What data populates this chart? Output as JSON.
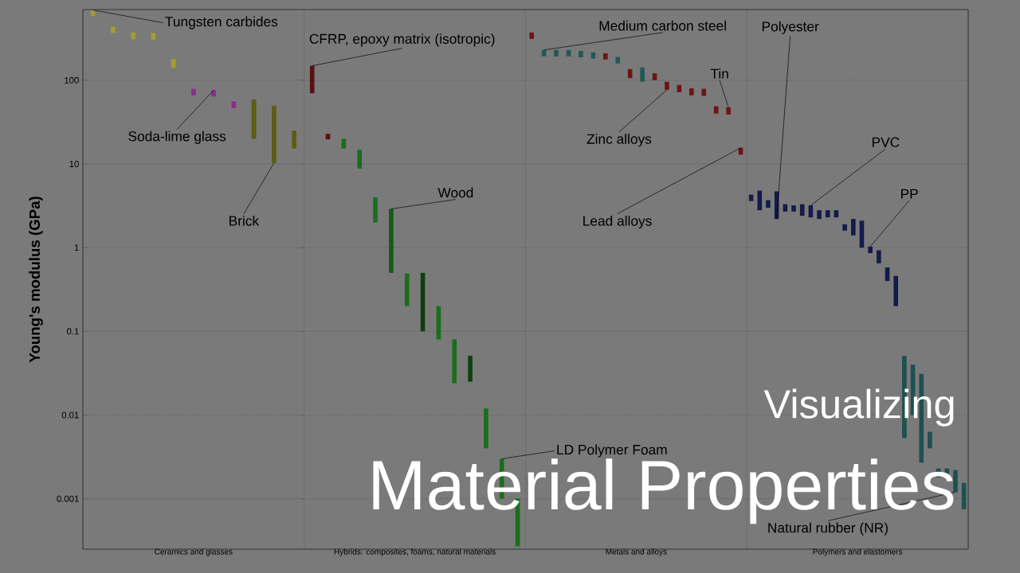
{
  "chart_data": [
    {
      "type": "bar",
      "ylabel": "Young's modulus (GPa)",
      "xlabel": "Ceramics and glasses",
      "log": "y",
      "grid": "y",
      "tick_labels": "y",
      "ylim": [
        0.00025,
        700
      ],
      "yticks": [
        0.001,
        0.01,
        0.1,
        1,
        10,
        100
      ],
      "categories": [
        null,
        null,
        null,
        null,
        null,
        null,
        null,
        null,
        null,
        null,
        null
      ],
      "base": [
        590,
        366,
        310,
        304,
        141,
        66,
        64,
        46.5,
        20,
        10.3,
        15.3
      ],
      "values": [
        100,
        70,
        62,
        63,
        38,
        13,
        12,
        9.2,
        39,
        39.3,
        9.7
      ],
      "colors": [
        "#a0a030",
        "#a0a030",
        "#a0a030",
        "#a0a030",
        "#a0a030",
        "#8e2a8e",
        "#8e2a8e",
        "#8e2a8e",
        "#5c5c14",
        "#5c5c14",
        "#5c5c14"
      ],
      "annotations": [
        "Tungsten carbides",
        "Soda-lime glass",
        "Brick"
      ]
    },
    {
      "type": "bar",
      "xlabel": "Hybrids: composites, foams, natural materials",
      "log": "y",
      "grid": "y",
      "tick_labels": false,
      "ylim": [
        0.00025,
        700
      ],
      "yticks": [
        0.001,
        0.01,
        0.1,
        1,
        10,
        100
      ],
      "categories": [
        null,
        null,
        null,
        null,
        null,
        null,
        null,
        null,
        null,
        null,
        null,
        null,
        null,
        null
      ],
      "base": [
        70,
        19.7,
        15.3,
        8.8,
        2,
        0.5,
        0.2,
        0.1,
        0.08,
        0.024,
        0.025,
        0.004,
        0.001,
        0.00027
      ],
      "values": [
        79,
        3.2,
        4.7,
        6,
        2,
        2.4,
        0.29,
        0.4,
        0.12,
        0.056,
        0.026,
        0.008,
        0.002,
        0.00073
      ],
      "colors": [
        "#5a1010",
        "#5a1010",
        "#1a6e1a",
        "#1a6e1a",
        "#1a6e1a",
        "#155a15",
        "#1a6e1a",
        "#0f3f0f",
        "#1a6e1a",
        "#1a6e1a",
        "#0f3f0f",
        "#1a6e1a",
        "#1a6e1a",
        "#1a6e1a"
      ],
      "annotations": [
        "CFRP, epoxy matrix (isotropic)",
        "Wood",
        "LD Polymer Foam"
      ]
    },
    {
      "type": "bar",
      "xlabel": "Metals and alloys",
      "log": "y",
      "grid": "y",
      "tick_labels": false,
      "ylim": [
        0.00025,
        700
      ],
      "yticks": [
        0.001,
        0.01,
        0.1,
        1,
        10,
        100
      ],
      "categories": [
        null,
        null,
        null,
        null,
        null,
        null,
        null,
        null,
        null,
        null,
        null,
        null,
        null,
        null,
        null,
        null,
        null,
        null
      ],
      "base": [
        312,
        193,
        193,
        193,
        188,
        182,
        177,
        159,
        106,
        96,
        100,
        77,
        72,
        66,
        65,
        40,
        39,
        12.9
      ],
      "values": [
        60,
        37,
        37,
        37,
        36,
        34,
        33,
        31,
        30,
        46,
        21,
        19,
        16,
        14,
        14,
        9,
        8.5,
        2.7
      ],
      "colors": [
        "#6e1414",
        "#1f5a55",
        "#1f5a55",
        "#1f5a55",
        "#1f5a55",
        "#1f5a55",
        "#6e1414",
        "#1f5a55",
        "#6e1414",
        "#1f5a55",
        "#6e1414",
        "#6e1414",
        "#6e1414",
        "#6e1414",
        "#6e1414",
        "#6e1414",
        "#6e1414",
        "#6e1414"
      ],
      "annotations": [
        "Medium carbon steel",
        "Tin",
        "Zinc alloys",
        "Lead alloys"
      ]
    },
    {
      "type": "bar",
      "title": "Visualizing",
      "subtitle": "Material Properties",
      "xlabel": "Polymers and elastomers",
      "log": "y",
      "grid": "y",
      "tick_labels": false,
      "ylim": [
        0.00025,
        700
      ],
      "yticks": [
        0.001,
        0.01,
        0.1,
        1,
        10,
        100
      ],
      "categories": [
        null,
        null,
        null,
        null,
        null,
        null,
        null,
        null,
        null,
        null,
        null,
        null,
        null,
        null,
        null,
        null,
        null,
        null,
        null,
        null,
        null,
        null,
        null,
        null,
        null,
        null
      ],
      "base": [
        3.6,
        2.8,
        3,
        2.2,
        2.7,
        2.7,
        2.4,
        2.3,
        2.2,
        2.3,
        2.3,
        1.6,
        1.4,
        1,
        0.86,
        0.65,
        0.4,
        0.2,
        0.0053,
        0.01,
        0.0027,
        0.004,
        0.0018,
        0.0018,
        0.0012,
        0.00075
      ],
      "values": [
        0.7,
        2,
        0.7,
        2.5,
        0.6,
        0.5,
        0.9,
        0.9,
        0.6,
        0.5,
        0.5,
        0.3,
        0.8,
        1.1,
        0.17,
        0.28,
        0.18,
        0.26,
        0.0457,
        0.03,
        0.0283,
        0.0023,
        0.0005,
        0.0005,
        0.001,
        0.0008
      ],
      "colors": [
        "#141a4a",
        "#141a4a",
        "#141a4a",
        "#141a4a",
        "#141a4a",
        "#141a4a",
        "#141a4a",
        "#141a4a",
        "#141a4a",
        "#141a4a",
        "#141a4a",
        "#141a4a",
        "#141a4a",
        "#141a4a",
        "#141a4a",
        "#141a4a",
        "#141a4a",
        "#141a4a",
        "#1e5050",
        "#1e5050",
        "#1e5050",
        "#1e5050",
        "#1e5050",
        "#1e5050",
        "#1e5050",
        "#1e5050"
      ],
      "annotations": [
        "Polyester",
        "PVC",
        "PP",
        "Natural rubber (NR)"
      ]
    }
  ]
}
